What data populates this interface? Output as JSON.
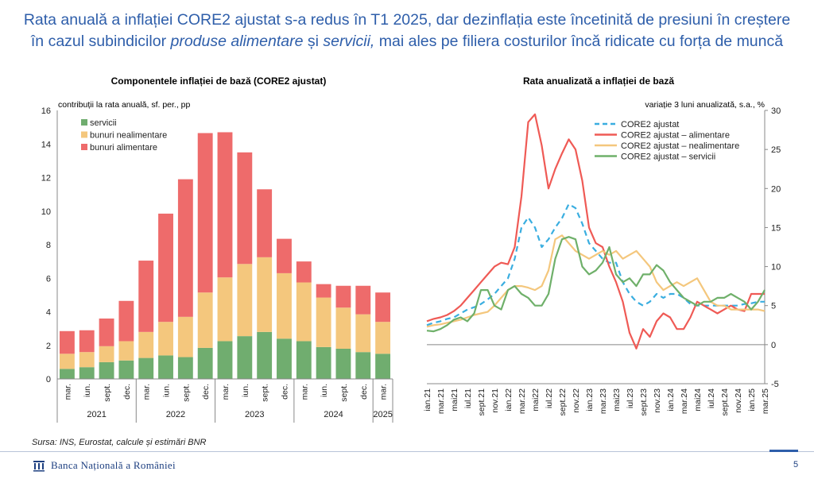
{
  "headline": {
    "part1": "Rata anuală a inflației CORE2 ajustat s-a redus în T1 2025, dar dezinflația este încetinită de presiuni în creștere",
    "part2a": "în cazul subindicilor ",
    "part2b": "produse alimentare",
    "part2c": " și ",
    "part2d": "servicii,",
    "part2e": " mai ales pe filiera costurilor încă ridicate cu forța de muncă"
  },
  "chart_data": [
    {
      "type": "bar",
      "stacked": true,
      "title": "Componentele inflației de bază (CORE2 ajustat)",
      "ylabel": "contribuții la rata anuală, sf. per., pp",
      "ylim": [
        0,
        16
      ],
      "yticks": [
        0,
        2,
        4,
        6,
        8,
        10,
        12,
        14,
        16
      ],
      "categories": [
        "mar.",
        "iun.",
        "sept.",
        "dec.",
        "mar.",
        "iun.",
        "sept.",
        "dec.",
        "mar.",
        "iun.",
        "sept.",
        "dec.",
        "mar.",
        "iun.",
        "sept.",
        "dec.",
        "mar."
      ],
      "year_groups": [
        {
          "label": "2021",
          "count": 4
        },
        {
          "label": "2022",
          "count": 4
        },
        {
          "label": "2023",
          "count": 4
        },
        {
          "label": "2024",
          "count": 4
        },
        {
          "label": "2025",
          "count": 1
        }
      ],
      "series": [
        {
          "name": "servicii",
          "color": "#70ad6f",
          "values": [
            0.6,
            0.7,
            1.0,
            1.1,
            1.25,
            1.4,
            1.3,
            1.85,
            2.25,
            2.55,
            2.8,
            2.4,
            2.25,
            1.9,
            1.8,
            1.6,
            1.5
          ]
        },
        {
          "name": "bunuri nealimentare",
          "color": "#f4c77d",
          "values": [
            0.9,
            0.9,
            0.95,
            1.15,
            1.55,
            2.0,
            2.4,
            3.3,
            3.8,
            4.3,
            4.45,
            3.9,
            3.5,
            2.95,
            2.45,
            2.25,
            1.9
          ]
        },
        {
          "name": "bunuri alimentare",
          "color": "#ee6b6b",
          "values": [
            1.35,
            1.3,
            1.65,
            2.4,
            4.25,
            6.45,
            8.2,
            9.5,
            8.65,
            6.65,
            4.05,
            2.05,
            1.25,
            0.8,
            1.3,
            1.7,
            1.75
          ]
        }
      ],
      "legend_position": "top-left"
    },
    {
      "type": "line",
      "title": "Rata anualizată a inflației de bază",
      "ylabel": "variație 3 luni anualizată, s.a., %",
      "y_axis_side": "right",
      "ylim": [
        -5,
        30
      ],
      "yticks": [
        -5,
        0,
        5,
        10,
        15,
        20,
        25,
        30
      ],
      "x": [
        "ian.21",
        "feb.21",
        "mar.21",
        "apr.21",
        "mai21",
        "iun.21",
        "iul.21",
        "aug.21",
        "sept.21",
        "oct.21",
        "nov.21",
        "dec.21",
        "ian.22",
        "feb.22",
        "mar.22",
        "apr.22",
        "mai22",
        "iun.22",
        "iul.22",
        "aug.22",
        "sept.22",
        "oct.22",
        "nov.22",
        "dec.22",
        "ian.23",
        "feb.23",
        "mar.23",
        "apr.23",
        "mai23",
        "iun.23",
        "iul.23",
        "aug.23",
        "sept.23",
        "oct.23",
        "nov.23",
        "dec.23",
        "ian.24",
        "feb.24",
        "mar.24",
        "apr.24",
        "mai24",
        "iun.24",
        "iul.24",
        "aug.24",
        "sept.24",
        "oct.24",
        "nov.24",
        "dec.24",
        "ian.25",
        "feb.25",
        "mar.25"
      ],
      "x_tick_labels": [
        "ian.21",
        "mar.21",
        "mai21",
        "iul.21",
        "sept.21",
        "nov.21",
        "ian.22",
        "mar.22",
        "mai22",
        "iul.22",
        "sept.22",
        "nov.22",
        "ian.23",
        "mar.23",
        "mai23",
        "iul.23",
        "sept.23",
        "nov.23",
        "ian.24",
        "mar.24",
        "mai24",
        "iul.24",
        "sept.24",
        "nov.24",
        "ian.25",
        "mar.25"
      ],
      "series": [
        {
          "name": "CORE2 ajustat",
          "color": "#3aaee0",
          "dash": "dashed",
          "values": [
            2.5,
            2.8,
            3.0,
            3.3,
            3.5,
            4.0,
            4.5,
            4.8,
            5.2,
            5.8,
            6.5,
            7.5,
            8.5,
            11.0,
            15.0,
            16.3,
            15.0,
            12.5,
            13.5,
            15.0,
            16.2,
            18.0,
            17.5,
            15.5,
            13.0,
            12.0,
            11.0,
            10.5,
            10.5,
            8.0,
            6.5,
            5.5,
            5.0,
            5.5,
            6.5,
            6.0,
            6.5,
            6.5,
            6.0,
            5.2,
            5.0,
            5.0,
            5.0,
            5.0,
            5.0,
            5.0,
            5.0,
            5.2,
            5.3,
            5.5,
            5.5
          ]
        },
        {
          "name": "CORE2 ajustat – alimentare",
          "color": "#ef5a55",
          "dash": "solid",
          "values": [
            3.0,
            3.3,
            3.5,
            3.8,
            4.3,
            5.0,
            6.0,
            7.0,
            8.0,
            9.0,
            10.0,
            10.5,
            10.3,
            12.5,
            19.0,
            28.5,
            29.5,
            25.5,
            20.0,
            22.5,
            24.5,
            26.3,
            25.0,
            21.0,
            15.0,
            13.0,
            12.5,
            10.0,
            8.0,
            5.5,
            1.5,
            -0.5,
            2.0,
            1.0,
            3.0,
            4.0,
            3.5,
            2.0,
            2.0,
            3.5,
            5.5,
            5.0,
            4.5,
            4.0,
            4.5,
            5.0,
            4.5,
            4.3,
            6.5,
            6.5,
            6.5
          ]
        },
        {
          "name": "CORE2 ajustat – nealimentare",
          "color": "#f4c77d",
          "dash": "solid",
          "values": [
            2.3,
            2.5,
            2.6,
            2.8,
            3.0,
            3.2,
            3.5,
            3.8,
            4.0,
            4.2,
            5.0,
            6.0,
            7.0,
            7.5,
            7.5,
            7.3,
            7.0,
            7.5,
            9.5,
            13.5,
            14.0,
            13.0,
            12.0,
            11.5,
            11.0,
            11.5,
            12.0,
            11.5,
            12.0,
            11.0,
            11.5,
            12.0,
            11.0,
            10.0,
            8.0,
            7.0,
            7.5,
            8.0,
            7.5,
            8.0,
            8.5,
            7.0,
            5.5,
            5.0,
            5.0,
            4.5,
            4.5,
            4.5,
            4.5,
            4.5,
            4.3
          ]
        },
        {
          "name": "CORE2 ajustat – servicii",
          "color": "#6fb06a",
          "dash": "solid",
          "values": [
            1.8,
            1.7,
            2.0,
            2.5,
            3.2,
            3.5,
            3.0,
            4.0,
            7.0,
            7.0,
            5.0,
            4.5,
            7.0,
            7.5,
            6.5,
            6.0,
            5.0,
            5.0,
            6.5,
            11.0,
            13.5,
            13.8,
            13.5,
            10.0,
            9.0,
            9.5,
            10.5,
            12.5,
            9.0,
            8.0,
            8.5,
            7.5,
            9.0,
            9.0,
            10.2,
            9.5,
            8.0,
            7.0,
            6.0,
            5.5,
            5.0,
            5.5,
            5.5,
            6.0,
            6.0,
            6.5,
            6.0,
            5.5,
            4.5,
            5.5,
            7.0
          ]
        }
      ],
      "legend_position": "top-left"
    }
  ],
  "footer": {
    "source": "Sursa: INS, Eurostat,  calcule și estimări BNR",
    "bank_name": "Banca Națională a României",
    "page_number": "5"
  }
}
